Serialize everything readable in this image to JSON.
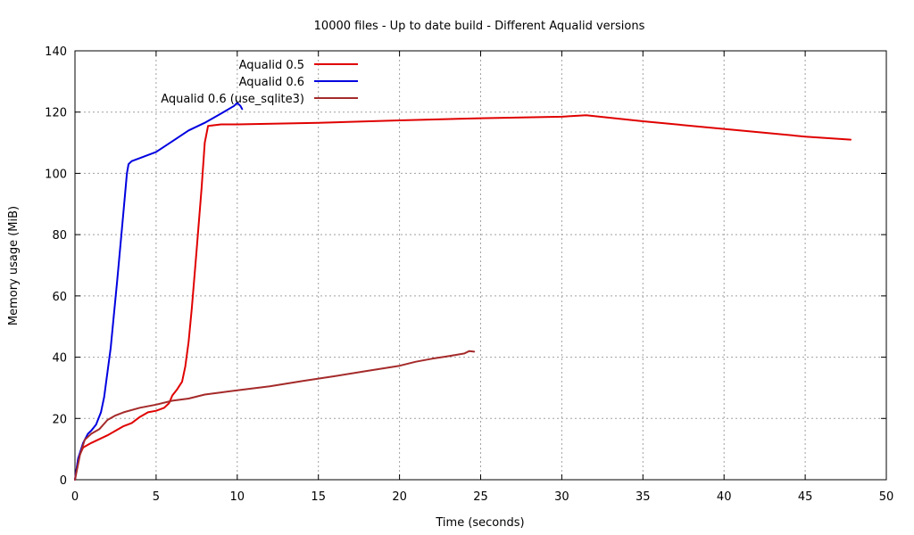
{
  "chart_data": {
    "type": "line",
    "title": "10000 files - Up to date build - Different Aqualid versions",
    "xlabel": "Time (seconds)",
    "ylabel": "Memory usage (MiB)",
    "xlim": [
      0,
      50
    ],
    "ylim": [
      0,
      140
    ],
    "xticks": [
      0,
      5,
      10,
      15,
      20,
      25,
      30,
      35,
      40,
      45,
      50
    ],
    "yticks": [
      0,
      20,
      40,
      60,
      80,
      100,
      120,
      140
    ],
    "grid": true,
    "legend_position": "top-left",
    "series": [
      {
        "name": "Aqualid 0.5",
        "color": "#e00000",
        "points": [
          [
            0,
            0
          ],
          [
            0.2,
            7
          ],
          [
            0.5,
            10.5
          ],
          [
            1,
            12
          ],
          [
            2,
            14.5
          ],
          [
            3,
            17.5
          ],
          [
            3.5,
            18.5
          ],
          [
            4,
            20.5
          ],
          [
            4.5,
            22
          ],
          [
            5,
            22.5
          ],
          [
            5.5,
            23.5
          ],
          [
            5.8,
            25
          ],
          [
            6,
            27.5
          ],
          [
            6.3,
            29.5
          ],
          [
            6.6,
            32
          ],
          [
            6.8,
            37
          ],
          [
            7,
            45
          ],
          [
            7.2,
            56
          ],
          [
            7.5,
            75
          ],
          [
            7.8,
            95
          ],
          [
            8,
            110
          ],
          [
            8.2,
            115.5
          ],
          [
            9,
            116
          ],
          [
            10,
            116
          ],
          [
            15,
            116.5
          ],
          [
            20,
            117.3
          ],
          [
            25,
            118
          ],
          [
            30,
            118.5
          ],
          [
            31.5,
            119
          ],
          [
            35,
            117
          ],
          [
            40,
            114.5
          ],
          [
            45,
            112
          ],
          [
            47.8,
            111
          ]
        ]
      },
      {
        "name": "Aqualid 0.6",
        "color": "#0000e0",
        "points": [
          [
            0,
            0
          ],
          [
            0.2,
            7
          ],
          [
            0.5,
            12
          ],
          [
            0.8,
            15
          ],
          [
            1,
            16
          ],
          [
            1.3,
            18
          ],
          [
            1.6,
            22
          ],
          [
            1.8,
            27
          ],
          [
            2.2,
            43
          ],
          [
            2.6,
            65
          ],
          [
            3,
            88
          ],
          [
            3.2,
            100
          ],
          [
            3.3,
            103
          ],
          [
            3.5,
            104
          ],
          [
            4,
            105
          ],
          [
            5,
            107
          ],
          [
            6,
            110.5
          ],
          [
            7,
            114
          ],
          [
            8,
            116.5
          ],
          [
            9,
            119.5
          ],
          [
            9.8,
            122
          ],
          [
            10,
            123
          ],
          [
            10.2,
            122
          ],
          [
            10.3,
            121
          ]
        ]
      },
      {
        "name": "Aqualid 0.6 (use_sqlite3)",
        "color": "#a52a2a",
        "points": [
          [
            0,
            0
          ],
          [
            0.3,
            8
          ],
          [
            0.6,
            13
          ],
          [
            1,
            15
          ],
          [
            1.5,
            16.5
          ],
          [
            2,
            19.5
          ],
          [
            2.5,
            21
          ],
          [
            3,
            22
          ],
          [
            4,
            23.5
          ],
          [
            5,
            24.5
          ],
          [
            6,
            25.8
          ],
          [
            7,
            26.5
          ],
          [
            8,
            27.8
          ],
          [
            9,
            28.5
          ],
          [
            10,
            29.2
          ],
          [
            12,
            30.5
          ],
          [
            14,
            32.2
          ],
          [
            16,
            33.8
          ],
          [
            18,
            35.5
          ],
          [
            20,
            37.2
          ],
          [
            21,
            38.5
          ],
          [
            22,
            39.5
          ],
          [
            23,
            40.3
          ],
          [
            24,
            41.2
          ],
          [
            24.3,
            42
          ],
          [
            24.6,
            41.8
          ]
        ]
      }
    ]
  }
}
